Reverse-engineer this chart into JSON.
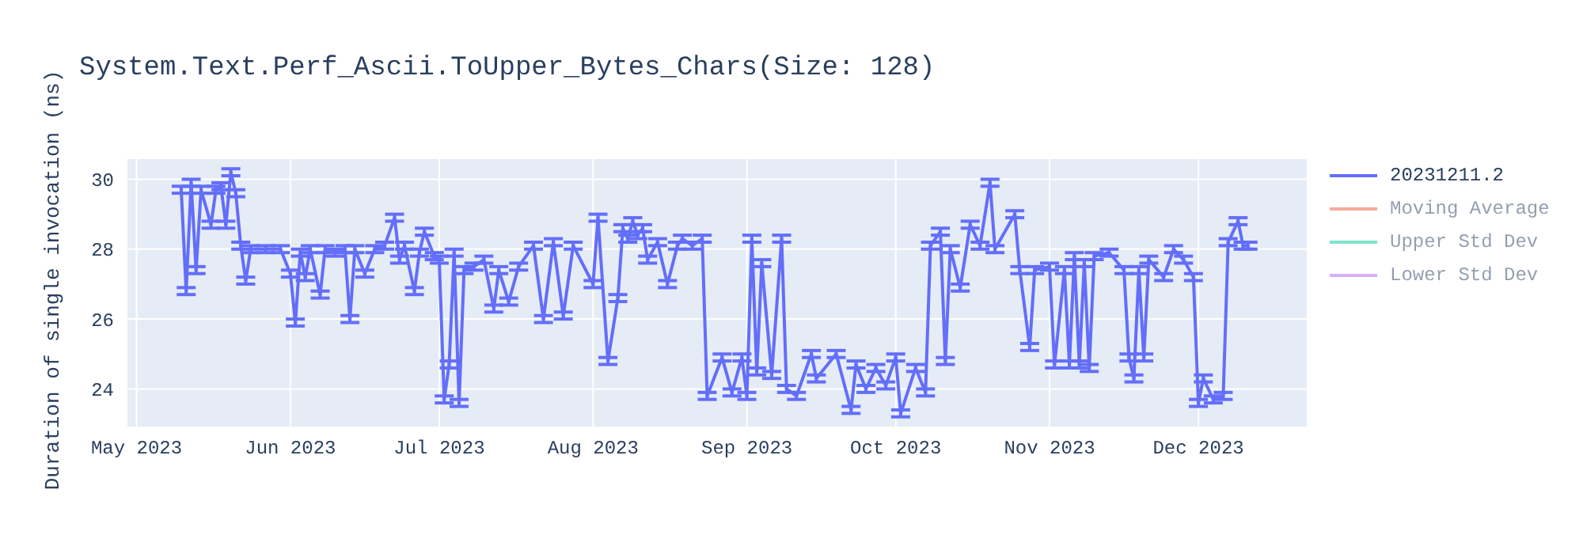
{
  "chart_data": {
    "type": "line",
    "title": "System.Text.Perf_Ascii.ToUpper_Bytes_Chars(Size: 128)",
    "ylabel": "Duration of single invocation (ns)",
    "x": [
      "2023-05-10",
      "2023-05-11",
      "2023-05-12",
      "2023-05-13",
      "2023-05-14",
      "2023-05-16",
      "2023-05-17",
      "2023-05-18",
      "2023-05-19",
      "2023-05-20",
      "2023-05-21",
      "2023-05-22",
      "2023-05-23",
      "2023-05-24",
      "2023-05-27",
      "2023-05-30",
      "2023-06-01",
      "2023-06-02",
      "2023-06-03",
      "2023-06-04",
      "2023-06-05",
      "2023-06-07",
      "2023-06-08",
      "2023-06-10",
      "2023-06-12",
      "2023-06-13",
      "2023-06-14",
      "2023-06-16",
      "2023-06-18",
      "2023-06-20",
      "2023-06-22",
      "2023-06-23",
      "2023-06-24",
      "2023-06-26",
      "2023-06-27",
      "2023-06-28",
      "2023-06-30",
      "2023-07-01",
      "2023-07-02",
      "2023-07-03",
      "2023-07-04",
      "2023-07-05",
      "2023-07-06",
      "2023-07-08",
      "2023-07-10",
      "2023-07-12",
      "2023-07-13",
      "2023-07-15",
      "2023-07-17",
      "2023-07-20",
      "2023-07-22",
      "2023-07-24",
      "2023-07-26",
      "2023-07-28",
      "2023-08-01",
      "2023-08-02",
      "2023-08-04",
      "2023-08-06",
      "2023-08-07",
      "2023-08-08",
      "2023-08-09",
      "2023-08-10",
      "2023-08-11",
      "2023-08-12",
      "2023-08-14",
      "2023-08-16",
      "2023-08-18",
      "2023-08-19",
      "2023-08-21",
      "2023-08-23",
      "2023-08-24",
      "2023-08-27",
      "2023-08-29",
      "2023-08-31",
      "2023-09-01",
      "2023-09-02",
      "2023-09-03",
      "2023-09-04",
      "2023-09-06",
      "2023-09-08",
      "2023-09-09",
      "2023-09-11",
      "2023-09-14",
      "2023-09-15",
      "2023-09-19",
      "2023-09-22",
      "2023-09-23",
      "2023-09-25",
      "2023-09-27",
      "2023-09-29",
      "2023-10-01",
      "2023-10-02",
      "2023-10-05",
      "2023-10-07",
      "2023-10-08",
      "2023-10-10",
      "2023-10-11",
      "2023-10-12",
      "2023-10-14",
      "2023-10-16",
      "2023-10-18",
      "2023-10-20",
      "2023-10-21",
      "2023-10-25",
      "2023-10-26",
      "2023-10-28",
      "2023-10-29",
      "2023-11-01",
      "2023-11-02",
      "2023-11-04",
      "2023-11-05",
      "2023-11-06",
      "2023-11-07",
      "2023-11-08",
      "2023-11-09",
      "2023-11-10",
      "2023-11-13",
      "2023-11-16",
      "2023-11-17",
      "2023-11-18",
      "2023-11-19",
      "2023-11-20",
      "2023-11-21",
      "2023-11-24",
      "2023-11-26",
      "2023-11-28",
      "2023-11-30",
      "2023-12-01",
      "2023-12-02",
      "2023-12-04",
      "2023-12-06",
      "2023-12-07",
      "2023-12-09",
      "2023-12-10",
      "2023-12-11"
    ],
    "series": [
      {
        "name": "20231211.2",
        "color": "#636efa",
        "values": [
          29.7,
          26.8,
          29.9,
          27.4,
          29.7,
          28.7,
          29.7,
          29.8,
          28.7,
          30.2,
          29.6,
          28.1,
          27.1,
          28.0,
          28.0,
          28.0,
          27.3,
          25.9,
          27.9,
          27.2,
          28.0,
          26.7,
          28.0,
          27.9,
          28.0,
          26.0,
          28.0,
          27.3,
          28.0,
          28.1,
          28.9,
          27.7,
          28.1,
          26.8,
          27.9,
          28.5,
          27.8,
          27.7,
          23.7,
          24.7,
          27.9,
          23.6,
          27.4,
          27.5,
          27.7,
          26.3,
          27.4,
          26.5,
          27.5,
          28.1,
          26.0,
          28.2,
          26.1,
          28.1,
          27.0,
          28.9,
          24.8,
          26.6,
          28.6,
          28.3,
          28.8,
          28.4,
          28.6,
          27.7,
          28.2,
          27.0,
          28.1,
          28.3,
          28.1,
          28.3,
          23.8,
          24.9,
          23.9,
          24.9,
          23.8,
          28.3,
          24.5,
          27.6,
          24.4,
          28.3,
          24.0,
          23.8,
          25.0,
          24.3,
          25.0,
          23.4,
          24.7,
          24.0,
          24.6,
          24.1,
          24.9,
          23.3,
          24.6,
          23.9,
          28.1,
          28.5,
          24.8,
          28.0,
          26.9,
          28.7,
          28.1,
          29.9,
          28.0,
          29.0,
          27.4,
          25.2,
          27.4,
          27.5,
          24.7,
          27.4,
          24.7,
          27.8,
          24.7,
          27.6,
          24.6,
          27.8,
          27.9,
          27.4,
          24.9,
          24.3,
          27.4,
          24.9,
          27.7,
          27.2,
          28.0,
          27.7,
          27.2,
          23.6,
          24.3,
          23.7,
          23.8,
          28.2,
          28.8,
          28.1,
          28.1
        ],
        "errors": [
          0.1,
          0.1,
          0.1,
          0.1,
          0.1,
          0.1,
          0.1,
          0.1,
          0.1,
          0.1,
          0.1,
          0.1,
          0.1,
          0.1,
          0.1,
          0.1,
          0.1,
          0.1,
          0.1,
          0.1,
          0.1,
          0.1,
          0.1,
          0.1,
          0.1,
          0.1,
          0.1,
          0.1,
          0.1,
          0.1,
          0.1,
          0.1,
          0.1,
          0.1,
          0.1,
          0.1,
          0.1,
          0.1,
          0.1,
          0.1,
          0.1,
          0.1,
          0.1,
          0.1,
          0.1,
          0.1,
          0.1,
          0.1,
          0.1,
          0.1,
          0.1,
          0.1,
          0.1,
          0.1,
          0.1,
          0.1,
          0.1,
          0.1,
          0.1,
          0.1,
          0.1,
          0.1,
          0.1,
          0.1,
          0.1,
          0.1,
          0.1,
          0.1,
          0.1,
          0.1,
          0.1,
          0.1,
          0.1,
          0.1,
          0.1,
          0.1,
          0.1,
          0.1,
          0.1,
          0.1,
          0.1,
          0.1,
          0.1,
          0.1,
          0.1,
          0.1,
          0.1,
          0.1,
          0.1,
          0.1,
          0.1,
          0.1,
          0.1,
          0.1,
          0.1,
          0.1,
          0.1,
          0.1,
          0.1,
          0.1,
          0.1,
          0.1,
          0.1,
          0.1,
          0.1,
          0.1,
          0.1,
          0.1,
          0.1,
          0.1,
          0.1,
          0.1,
          0.1,
          0.1,
          0.1,
          0.1,
          0.1,
          0.1,
          0.1,
          0.1,
          0.1,
          0.1,
          0.1,
          0.1,
          0.1,
          0.1,
          0.1,
          0.1,
          0.1,
          0.1,
          0.1,
          0.1,
          0.1,
          0.1,
          0.1
        ]
      },
      {
        "name": "Moving Average",
        "color": "#ef553b",
        "values": [
          null,
          null,
          null,
          null,
          null,
          null,
          null,
          null,
          null,
          null,
          null,
          null,
          null,
          null,
          null,
          null,
          null,
          null,
          null,
          null,
          null,
          null,
          null,
          null,
          null,
          null,
          null,
          null,
          null,
          null,
          null,
          null,
          null,
          null,
          null,
          null,
          null,
          null,
          null,
          null,
          null,
          null,
          null,
          null,
          null,
          null,
          null,
          null,
          null,
          null,
          null,
          null,
          null,
          null,
          null,
          null,
          null,
          null,
          null,
          null,
          null,
          null,
          null,
          null,
          null,
          null,
          null,
          null,
          null,
          null,
          null,
          null,
          null,
          null,
          null,
          null,
          null,
          null,
          null,
          null,
          null,
          null,
          null,
          null,
          null,
          null,
          null,
          null,
          null,
          null,
          null,
          null,
          null,
          null,
          null,
          null,
          null,
          null,
          null,
          null,
          null,
          null,
          null,
          null,
          null,
          null,
          null,
          null,
          null,
          null,
          null,
          null,
          null,
          null,
          null,
          null,
          null,
          null,
          null,
          null,
          null,
          null,
          null,
          null,
          null,
          null,
          null,
          null,
          null,
          null,
          null,
          null,
          null,
          null,
          null
        ]
      },
      {
        "name": "Upper Std Dev",
        "color": "#00cc96",
        "values": [
          null,
          null,
          null,
          null,
          null,
          null,
          null,
          null,
          null,
          null,
          null,
          null,
          null,
          null,
          null,
          null,
          null,
          null,
          null,
          null,
          null,
          null,
          null,
          null,
          null,
          null,
          null,
          null,
          null,
          null,
          null,
          null,
          null,
          null,
          null,
          null,
          null,
          null,
          null,
          null,
          null,
          null,
          null,
          null,
          null,
          null,
          null,
          null,
          null,
          null,
          null,
          null,
          null,
          null,
          null,
          null,
          null,
          null,
          null,
          null,
          null,
          null,
          null,
          null,
          null,
          null,
          null,
          null,
          null,
          null,
          null,
          null,
          null,
          null,
          null,
          null,
          null,
          null,
          null,
          null,
          null,
          null,
          null,
          null,
          null,
          null,
          null,
          null,
          null,
          null,
          null,
          null,
          null,
          null,
          null,
          null,
          null,
          null,
          null,
          null,
          null,
          null,
          null,
          null,
          null,
          null,
          null,
          null,
          null,
          null,
          null,
          null,
          null,
          null,
          null,
          null,
          null,
          null,
          null,
          null,
          null,
          null,
          null,
          null,
          null,
          null,
          null,
          null,
          null,
          null,
          null,
          null,
          null,
          null,
          null
        ]
      },
      {
        "name": "Lower Std Dev",
        "color": "#ab63fa",
        "values": [
          null,
          null,
          null,
          null,
          null,
          null,
          null,
          null,
          null,
          null,
          null,
          null,
          null,
          null,
          null,
          null,
          null,
          null,
          null,
          null,
          null,
          null,
          null,
          null,
          null,
          null,
          null,
          null,
          null,
          null,
          null,
          null,
          null,
          null,
          null,
          null,
          null,
          null,
          null,
          null,
          null,
          null,
          null,
          null,
          null,
          null,
          null,
          null,
          null,
          null,
          null,
          null,
          null,
          null,
          null,
          null,
          null,
          null,
          null,
          null,
          null,
          null,
          null,
          null,
          null,
          null,
          null,
          null,
          null,
          null,
          null,
          null,
          null,
          null,
          null,
          null,
          null,
          null,
          null,
          null,
          null,
          null,
          null,
          null,
          null,
          null,
          null,
          null,
          null,
          null,
          null,
          null,
          null,
          null,
          null,
          null,
          null,
          null,
          null,
          null,
          null,
          null,
          null,
          null,
          null,
          null,
          null,
          null,
          null,
          null,
          null,
          null,
          null,
          null,
          null,
          null,
          null,
          null,
          null,
          null,
          null,
          null,
          null,
          null,
          null,
          null,
          null,
          null,
          null,
          null,
          null,
          null,
          null,
          null,
          null
        ]
      }
    ],
    "xlim": [
      "2023-04-29",
      "2023-12-23"
    ],
    "xticks": [
      {
        "value": "2023-05-01",
        "label": "May 2023"
      },
      {
        "value": "2023-06-01",
        "label": "Jun 2023"
      },
      {
        "value": "2023-07-01",
        "label": "Jul 2023"
      },
      {
        "value": "2023-08-01",
        "label": "Aug 2023"
      },
      {
        "value": "2023-09-01",
        "label": "Sep 2023"
      },
      {
        "value": "2023-10-01",
        "label": "Oct 2023"
      },
      {
        "value": "2023-11-01",
        "label": "Nov 2023"
      },
      {
        "value": "2023-12-01",
        "label": "Dec 2023"
      }
    ],
    "ylim": [
      22.9,
      30.6
    ],
    "yticks": [
      24,
      26,
      28,
      30
    ],
    "grid": true,
    "legend": "right",
    "marker": "none",
    "line_style": "solid"
  }
}
